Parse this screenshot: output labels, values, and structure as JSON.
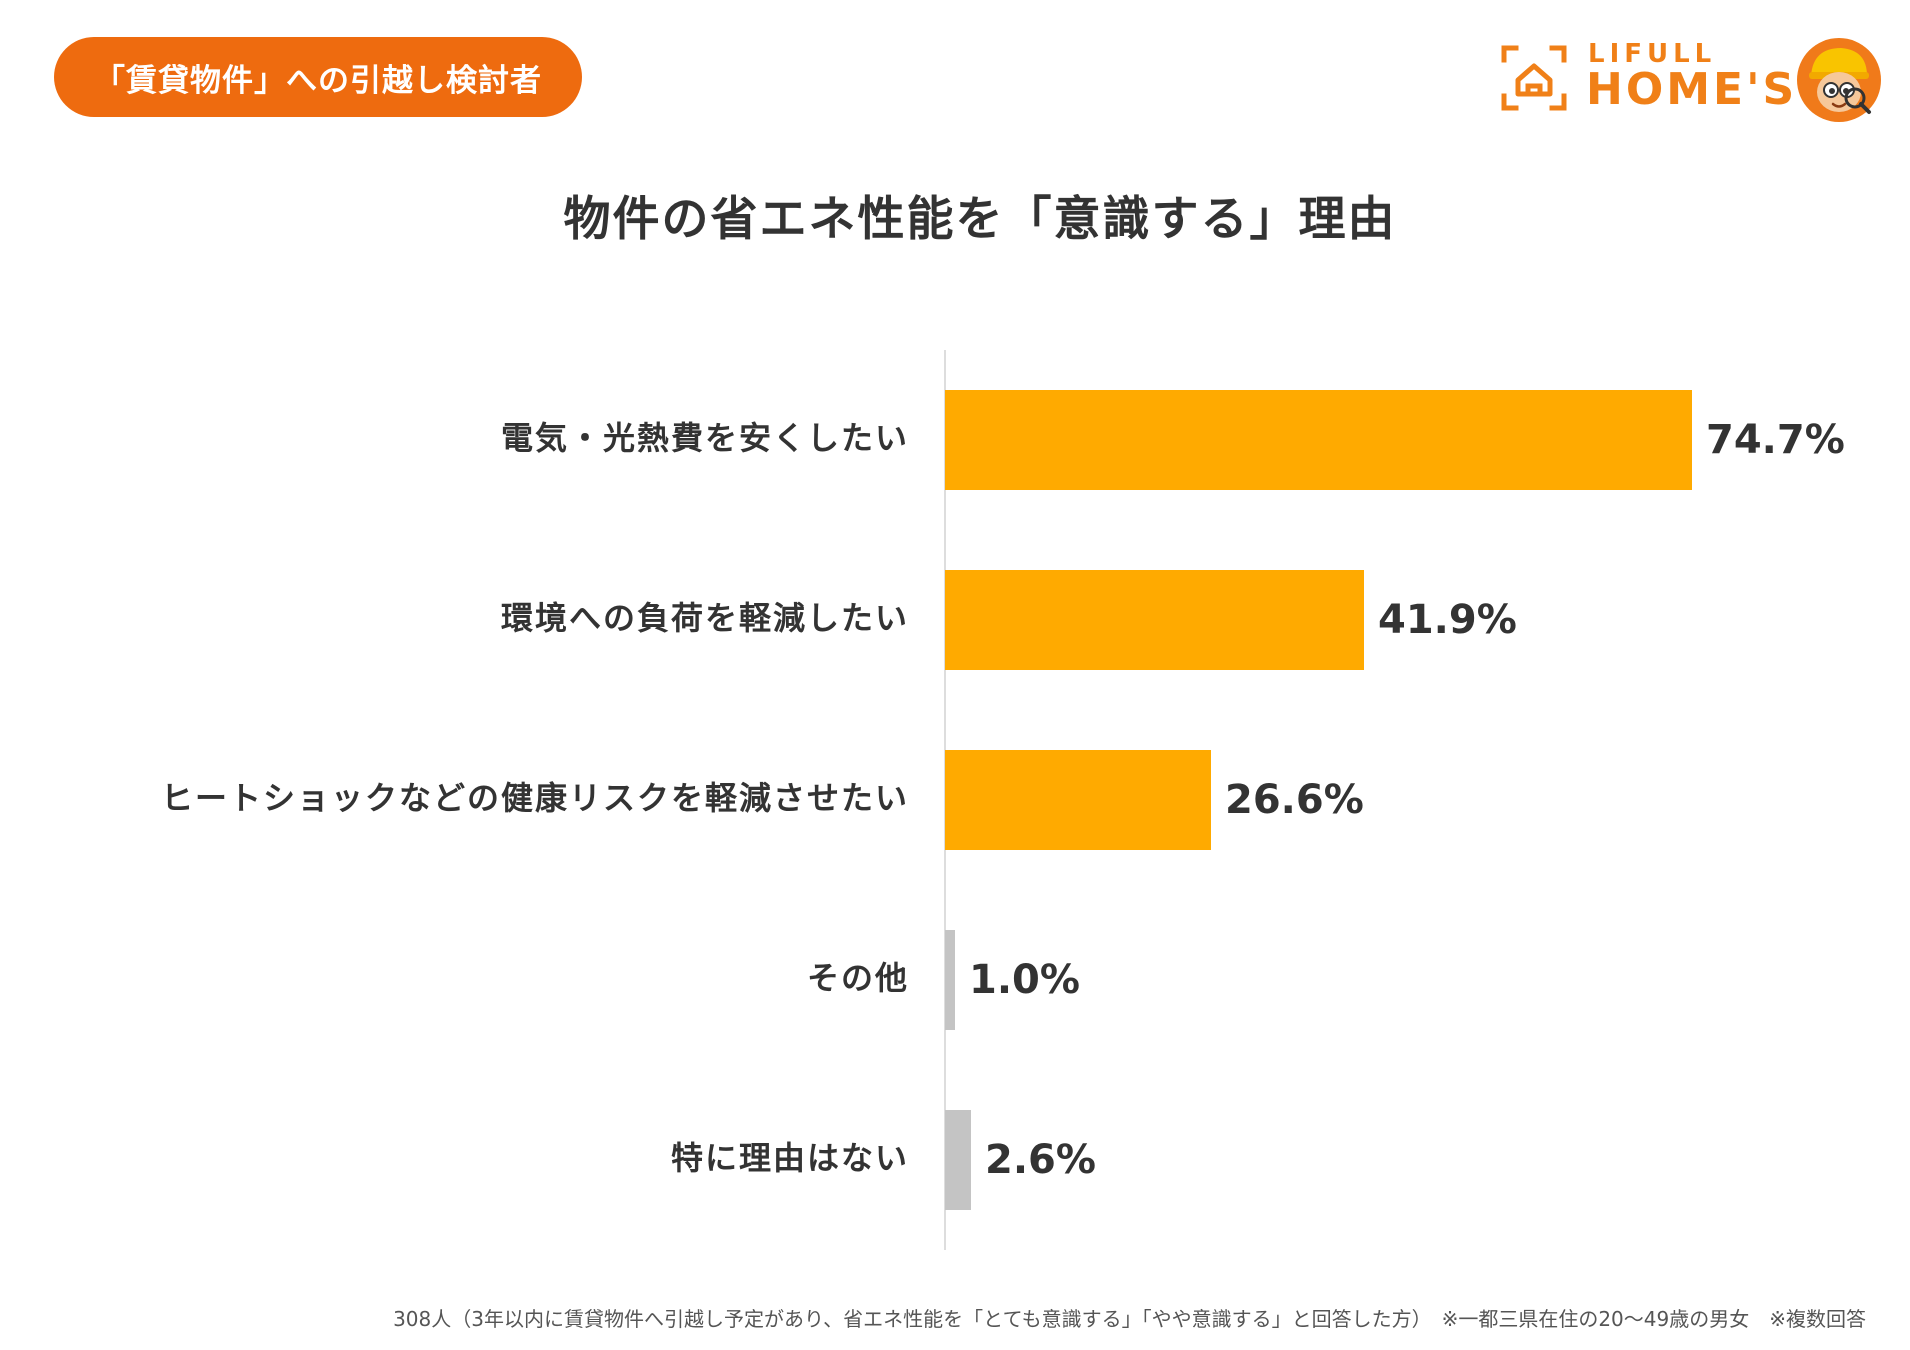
{
  "badge": {
    "label": "「賃貸物件」への引越し検討者"
  },
  "logo": {
    "top": "LIFULL",
    "main": "HOME'S"
  },
  "footnote": "308人（3年以内に賃貸物件へ引越し予定があり、省エネ性能を「とても意識する」「やや意識する」と回答した方）　※一都三県在住の20〜49歳の男女　※複数回答",
  "colors": {
    "accent_bar": "#FFAA00",
    "other_bar": "#C4C4C4",
    "badge": "#EE6B0F",
    "brand": "#F08018"
  },
  "chart_data": {
    "type": "bar",
    "orientation": "horizontal",
    "title": "物件の省エネ性能を「意識する」理由",
    "categories": [
      "電気・光熱費を安くしたい",
      "環境への負荷を軽減したい",
      "ヒートショックなどの健康リスクを軽減させたい",
      "その他",
      "特に理由はない"
    ],
    "values": [
      74.7,
      41.9,
      26.6,
      1.0,
      2.6
    ],
    "value_labels": [
      "74.7%",
      "41.9%",
      "26.6%",
      "1.0%",
      "2.6%"
    ],
    "unit": "%",
    "xlim": [
      0,
      100
    ],
    "grid": false,
    "legend": "none"
  }
}
